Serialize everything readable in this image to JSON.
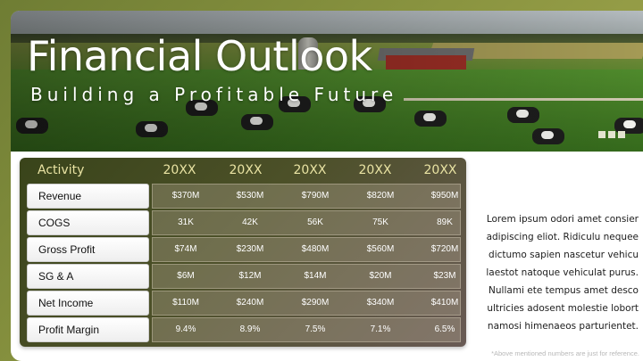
{
  "hero": {
    "title": "Financial Outlook",
    "subtitle": "Building a Profitable Future"
  },
  "table": {
    "header_label": "Activity",
    "years": [
      "20XX",
      "20XX",
      "20XX",
      "20XX",
      "20XX"
    ],
    "rows": [
      {
        "label": "Revenue",
        "values": [
          "$370M",
          "$530M",
          "$790M",
          "$820M",
          "$950M"
        ]
      },
      {
        "label": "COGS",
        "values": [
          "31K",
          "42K",
          "56K",
          "75K",
          "89K"
        ]
      },
      {
        "label": "Gross Profit",
        "values": [
          "$74M",
          "$230M",
          "$480M",
          "$560M",
          "$720M"
        ]
      },
      {
        "label": "SG & A",
        "values": [
          "$6M",
          "$12M",
          "$14M",
          "$20M",
          "$23M"
        ]
      },
      {
        "label": "Net Income",
        "values": [
          "$110M",
          "$240M",
          "$290M",
          "$340M",
          "$410M"
        ]
      },
      {
        "label": "Profit Margin",
        "values": [
          "9.4%",
          "8.9%",
          "7.5%",
          "7.1%",
          "6.5%"
        ]
      }
    ]
  },
  "body_text": "Lorem ipsum odori amet consier adipiscing eliot. Ridiculu nequee dictumo sapien nascetur vehicu laestot natoque vehiculat purus. Nullami ete tempus amet desco ultricies adosent molestie lobort namosi himenaeos parturientet.",
  "footnote": "*Above mentioned numbers are just for reference.",
  "colors": {
    "frame": "#7e8a3a",
    "header_text": "#e9e3a3",
    "table_bg": "#4c5028"
  }
}
